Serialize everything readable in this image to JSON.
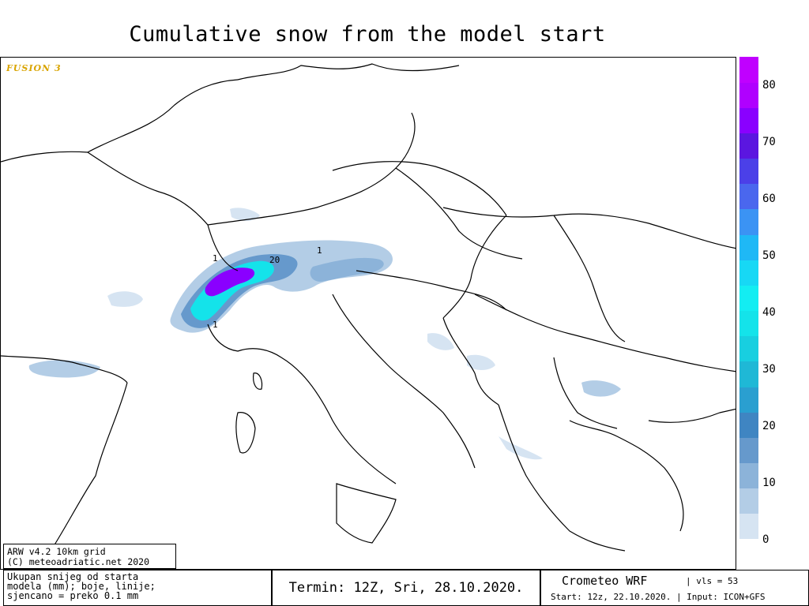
{
  "title": "Cumulative snow from the model start",
  "logo": "FUSION 3",
  "model_info": {
    "line1": "ARW v4.2 10km grid",
    "line2": "(C) meteoadriatic.net 2020"
  },
  "legend": {
    "ticks": [
      "80",
      "70",
      "60",
      "50",
      "40",
      "30",
      "20",
      "10",
      "0"
    ],
    "colors": [
      "#d6e4f2",
      "#b3cde6",
      "#8cb3d9",
      "#6699cc",
      "#3f85c2",
      "#2a9fd0",
      "#1fb8d6",
      "#18cfe0",
      "#14e3ea",
      "#13edf2",
      "#17d8f5",
      "#1fb8f6",
      "#3b93f4",
      "#4a67ee",
      "#4b40e8",
      "#5b16e0",
      "#8a00ff",
      "#b000ff",
      "#c000ff"
    ]
  },
  "contour_labels": [
    "1",
    "20",
    "1",
    "1"
  ],
  "footer": {
    "description_lines": [
      "Ukupan snijeg od starta",
      "modela (mm); boje, linije;",
      "sjencano = preko 0.1 mm"
    ],
    "termin": "Termin: 12Z, Sri, 28.10.2020.",
    "brand": "Crometeo WRF",
    "vls": "| vls = 53",
    "start": "Start: 12z, 22.10.2020. | Input: ICON+GFS"
  }
}
